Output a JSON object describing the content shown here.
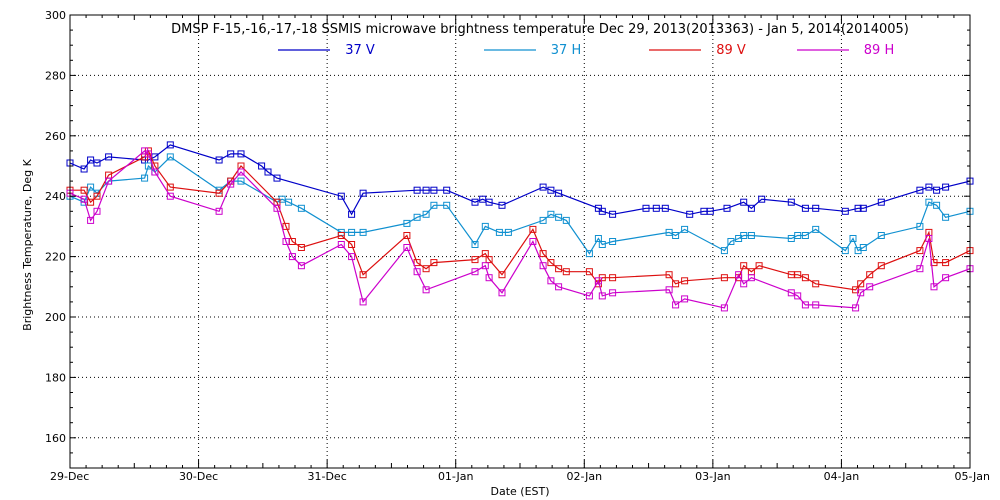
{
  "chart_data": {
    "type": "line",
    "title": "DMSP F-15,-16,-17,-18 SSMIS microwave brightness temperature Dec 29, 2013(2013363) - Jan  5, 2014(2014005)",
    "xlabel": "Date (EST)",
    "ylabel": "Brightness Temperature, Deg K",
    "ylim": [
      150,
      300
    ],
    "yticks": [
      160,
      180,
      200,
      220,
      240,
      260,
      280,
      300
    ],
    "xlim_days": [
      0,
      7
    ],
    "xtick_labels": [
      "29-Dec",
      "30-Dec",
      "31-Dec",
      "01-Jan",
      "02-Jan",
      "03-Jan",
      "04-Jan",
      "05-Jan"
    ],
    "grid": true,
    "legend_position": "top-center",
    "series": [
      {
        "name": "37 V",
        "color": "#0000c8",
        "x": [
          0.0,
          0.11,
          0.16,
          0.21,
          0.3,
          0.58,
          0.61,
          0.66,
          0.78,
          1.16,
          1.25,
          1.33,
          1.49,
          1.54,
          1.61,
          2.11,
          2.19,
          2.28,
          2.7,
          2.77,
          2.83,
          2.93,
          3.15,
          3.21,
          3.26,
          3.36,
          3.68,
          3.74,
          3.8,
          4.11,
          4.14,
          4.22,
          4.48,
          4.56,
          4.63,
          4.82,
          4.93,
          4.98,
          5.11,
          5.24,
          5.3,
          5.38,
          5.61,
          5.72,
          5.8,
          6.03,
          6.13,
          6.17,
          6.31,
          6.61,
          6.68,
          6.74,
          6.81,
          7.0
        ],
        "y": [
          251,
          249,
          252,
          251,
          253,
          252,
          252,
          253,
          257,
          252,
          254,
          254,
          250,
          248,
          246,
          240,
          234,
          241,
          242,
          242,
          242,
          242,
          238,
          239,
          238,
          237,
          243,
          242,
          241,
          236,
          235,
          234,
          236,
          236,
          236,
          234,
          235,
          235,
          236,
          238,
          236,
          239,
          238,
          236,
          236,
          235,
          236,
          236,
          238,
          242,
          243,
          242,
          243,
          245
        ]
      },
      {
        "name": "37 H",
        "color": "#1090d0",
        "x": [
          0.0,
          0.11,
          0.16,
          0.21,
          0.3,
          0.58,
          0.61,
          0.66,
          0.78,
          1.16,
          1.25,
          1.33,
          1.61,
          1.65,
          1.7,
          1.8,
          2.11,
          2.19,
          2.28,
          2.62,
          2.7,
          2.77,
          2.83,
          2.93,
          3.15,
          3.23,
          3.34,
          3.41,
          3.68,
          3.74,
          3.8,
          3.86,
          4.04,
          4.11,
          4.14,
          4.22,
          4.66,
          4.71,
          4.78,
          5.09,
          5.14,
          5.2,
          5.24,
          5.3,
          5.61,
          5.66,
          5.72,
          5.8,
          6.03,
          6.09,
          6.13,
          6.17,
          6.31,
          6.61,
          6.68,
          6.74,
          6.81,
          7.0
        ],
        "y": [
          240,
          238,
          243,
          241,
          245,
          246,
          250,
          248,
          253,
          242,
          245,
          245,
          238,
          239,
          238,
          236,
          228,
          228,
          228,
          231,
          233,
          234,
          237,
          237,
          224,
          230,
          228,
          228,
          232,
          234,
          233,
          232,
          221,
          226,
          224,
          225,
          228,
          227,
          229,
          222,
          225,
          226,
          227,
          227,
          226,
          227,
          227,
          229,
          222,
          226,
          222,
          223,
          227,
          230,
          238,
          237,
          233,
          235
        ]
      },
      {
        "name": "89 V",
        "color": "#dd1010",
        "x": [
          0.0,
          0.11,
          0.16,
          0.21,
          0.3,
          0.58,
          0.61,
          0.66,
          0.78,
          1.16,
          1.25,
          1.33,
          1.61,
          1.68,
          1.73,
          1.8,
          2.11,
          2.19,
          2.28,
          2.62,
          2.7,
          2.77,
          2.83,
          3.15,
          3.23,
          3.26,
          3.36,
          3.6,
          3.68,
          3.74,
          3.8,
          3.86,
          4.04,
          4.11,
          4.14,
          4.22,
          4.66,
          4.71,
          4.78,
          5.09,
          5.2,
          5.24,
          5.3,
          5.36,
          5.61,
          5.66,
          5.72,
          5.8,
          6.11,
          6.15,
          6.22,
          6.31,
          6.61,
          6.68,
          6.72,
          6.81,
          7.0
        ],
        "y": [
          242,
          242,
          238,
          240,
          247,
          253,
          255,
          250,
          243,
          241,
          245,
          250,
          238,
          230,
          225,
          223,
          227,
          224,
          214,
          227,
          218,
          216,
          218,
          219,
          221,
          219,
          214,
          229,
          221,
          218,
          216,
          215,
          215,
          211,
          213,
          213,
          214,
          211,
          212,
          213,
          213,
          217,
          215,
          217,
          214,
          214,
          213,
          211,
          209,
          211,
          214,
          217,
          222,
          228,
          218,
          218,
          222
        ]
      },
      {
        "name": "89 H",
        "color": "#cc00cc",
        "x": [
          0.0,
          0.11,
          0.16,
          0.21,
          0.3,
          0.58,
          0.61,
          0.66,
          0.78,
          1.16,
          1.25,
          1.33,
          1.61,
          1.68,
          1.73,
          1.8,
          2.11,
          2.19,
          2.28,
          2.62,
          2.7,
          2.77,
          3.15,
          3.23,
          3.26,
          3.36,
          3.6,
          3.68,
          3.74,
          3.8,
          4.04,
          4.11,
          4.14,
          4.22,
          4.66,
          4.71,
          4.78,
          5.09,
          5.2,
          5.24,
          5.3,
          5.61,
          5.66,
          5.72,
          5.8,
          6.11,
          6.15,
          6.22,
          6.61,
          6.68,
          6.72,
          6.81,
          7.0
        ],
        "y": [
          241,
          239,
          232,
          235,
          245,
          255,
          254,
          248,
          240,
          235,
          244,
          248,
          236,
          225,
          220,
          217,
          224,
          220,
          205,
          223,
          215,
          209,
          215,
          217,
          213,
          208,
          225,
          217,
          212,
          210,
          207,
          212,
          207,
          208,
          209,
          204,
          206,
          203,
          214,
          211,
          213,
          208,
          207,
          204,
          204,
          203,
          208,
          210,
          216,
          226,
          210,
          213,
          216
        ]
      }
    ]
  }
}
